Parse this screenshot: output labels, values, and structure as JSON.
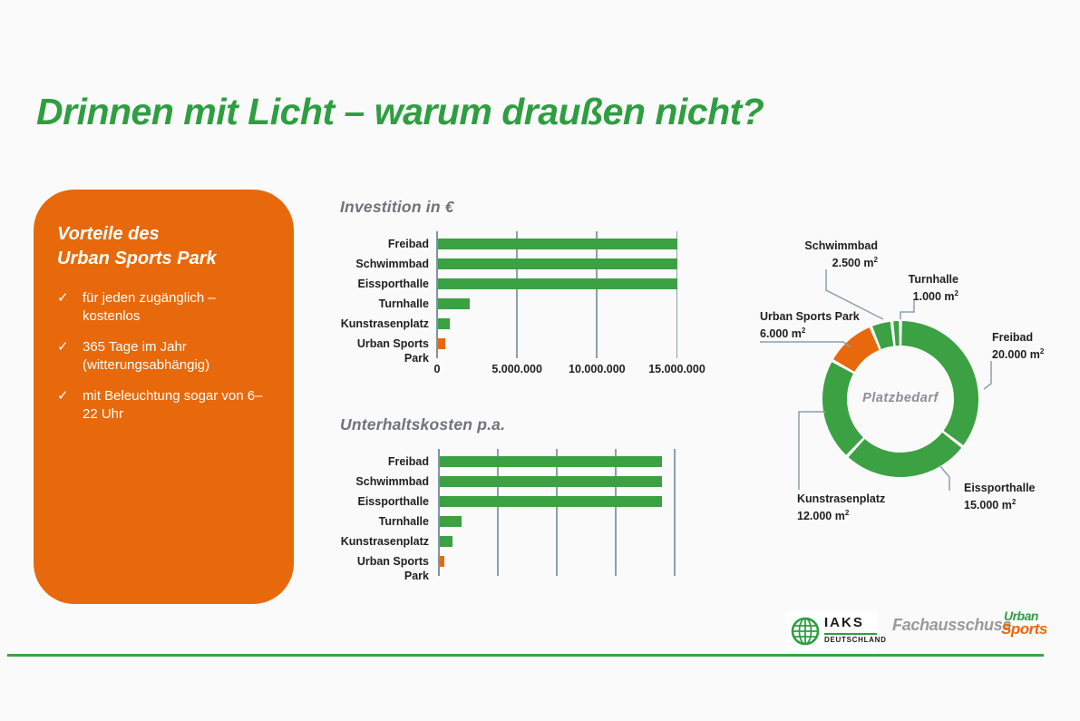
{
  "page": {
    "title": "Drinnen mit Licht – warum draußen nicht?"
  },
  "colors": {
    "green": "#3ba143",
    "orange": "#e8690b",
    "title_green": "#2f9e41",
    "card_orange": "#e8690b",
    "chart_title_gray": "#6e737c",
    "axis_gray": "#8aa0b0",
    "center_label_gray": "#8a8f99",
    "footer_text_gray": "#9a9a9a"
  },
  "benefits_card": {
    "heading": "Vorteile des\nUrban Sports Park",
    "check": "✓",
    "items": [
      "für jeden zugänglich – kostenlos",
      "365 Tage im Jahr (witterungsabhängig)",
      "mit Beleuchtung sogar von 6–22 Uhr"
    ]
  },
  "chart_data": [
    {
      "type": "bar",
      "orientation": "horizontal",
      "title": "Investition in €",
      "categories": [
        "Freibad",
        "Schwimmbad",
        "Eissporthalle",
        "Turnhalle",
        "Kunstrasenplatz",
        "Urban Sports Park"
      ],
      "values": [
        15000000,
        15000000,
        15000000,
        2000000,
        750000,
        500000
      ],
      "bar_colors": [
        "green",
        "green",
        "green",
        "green",
        "green",
        "orange"
      ],
      "xlim": [
        0,
        16700000
      ],
      "xticks": [
        0,
        5000000,
        10000000,
        15000000
      ],
      "xtick_labels": [
        "0",
        "5.000.000",
        "10.000.000",
        "15.000.000"
      ],
      "grid": true,
      "legend": false
    },
    {
      "type": "bar",
      "orientation": "horizontal",
      "title": "Unterhaltskosten p.a.",
      "categories": [
        "Freibad",
        "Schwimmbad",
        "Eissporthalle",
        "Turnhalle",
        "Kunstrasenplatz",
        "Urban Sports Park"
      ],
      "values_axis_units": [
        3.77,
        3.77,
        3.77,
        0.38,
        0.23,
        0.08
      ],
      "bar_colors": [
        "green",
        "green",
        "green",
        "green",
        "green",
        "orange"
      ],
      "xlim_axis_units": [
        0,
        4.35
      ],
      "gridline_axis_units": [
        1,
        2,
        3,
        4
      ],
      "xtick_labels": [],
      "axis_unlabeled": true,
      "grid": true,
      "legend": false
    },
    {
      "type": "donut",
      "center_label": "Platzbedarf",
      "unit": "m²",
      "start_angle_deg": 0,
      "direction": "clockwise",
      "segments": [
        {
          "label": "Freibad",
          "value": 20000,
          "display": "20.000 m",
          "color": "green"
        },
        {
          "label": "Eissporthalle",
          "value": 15000,
          "display": "15.000 m",
          "color": "green"
        },
        {
          "label": "Kunstrasenplatz",
          "value": 12000,
          "display": "12.000 m",
          "color": "green"
        },
        {
          "label": "Urban Sports Park",
          "value": 6000,
          "display": "6.000 m",
          "color": "orange"
        },
        {
          "label": "Schwimmbad",
          "value": 2500,
          "display": "2.500 m",
          "color": "green"
        },
        {
          "label": "Turnhalle",
          "value": 1000,
          "display": "1.000 m",
          "color": "green"
        }
      ]
    }
  ],
  "footer": {
    "iaks_name": "IAKS",
    "iaks_sub": "DEUTSCHLAND",
    "fachausschuss": "Fachausschuss",
    "urban": "Urban",
    "sports": "Sports"
  }
}
